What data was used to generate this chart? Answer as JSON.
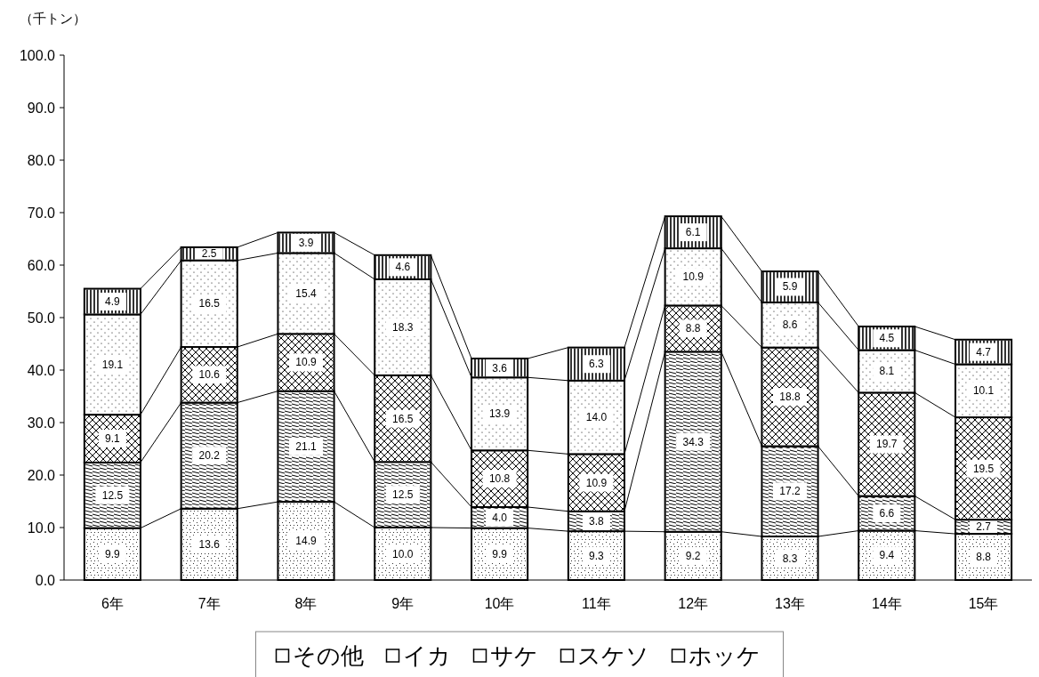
{
  "chart_data": {
    "type": "bar",
    "stacked": true,
    "ylabel": "（千トン）",
    "categories": [
      "6年",
      "7年",
      "8年",
      "9年",
      "10年",
      "11年",
      "12年",
      "13年",
      "14年",
      "15年"
    ],
    "ylim": [
      0,
      100
    ],
    "yticks": [
      {
        "value": 0,
        "label": "0.0"
      },
      {
        "value": 10,
        "label": "10.0"
      },
      {
        "value": 20,
        "label": "20.0"
      },
      {
        "value": 30,
        "label": "30.0"
      },
      {
        "value": 40,
        "label": "40.0"
      },
      {
        "value": 50,
        "label": "50.0"
      },
      {
        "value": 60,
        "label": "60.0"
      },
      {
        "value": 70,
        "label": "70.0"
      },
      {
        "value": 80,
        "label": "80.0"
      },
      {
        "value": 90,
        "label": "90.0"
      },
      {
        "value": 100,
        "label": "100.0"
      }
    ],
    "series": [
      {
        "name": "その他",
        "color": "#ffffff",
        "values": [
          9.9,
          13.6,
          14.9,
          10.0,
          9.9,
          9.3,
          9.2,
          8.3,
          9.4,
          8.8
        ],
        "value_labels": [
          "9.9",
          "13.6",
          "14.9",
          "10.0",
          "9.9",
          "9.3",
          "9.2",
          "8.3",
          "9.4",
          "8.8"
        ]
      },
      {
        "name": "イカ",
        "color": "#ffffff",
        "values": [
          12.5,
          20.2,
          21.1,
          12.5,
          4.0,
          3.8,
          34.3,
          17.2,
          6.6,
          2.7
        ],
        "value_labels": [
          "12.5",
          "20.2",
          "21.1",
          "12.5",
          "4.0",
          "3.8",
          "34.3",
          "17.2",
          "6.6",
          "2.7"
        ]
      },
      {
        "name": "サケ",
        "color": "#ffffff",
        "values": [
          9.1,
          10.6,
          10.9,
          16.5,
          10.8,
          10.9,
          8.8,
          18.8,
          19.7,
          19.5
        ],
        "value_labels": [
          "9.1",
          "10.6",
          "10.9",
          "16.5",
          "10.8",
          "10.9",
          "8.8",
          "18.8",
          "19.7",
          "19.5"
        ]
      },
      {
        "name": "スケソ",
        "color": "#ffffff",
        "values": [
          19.1,
          16.5,
          15.4,
          18.3,
          13.9,
          14.0,
          10.9,
          8.6,
          8.1,
          10.1
        ],
        "value_labels": [
          "19.1",
          "16.5",
          "15.4",
          "18.3",
          "13.9",
          "14.0",
          "10.9",
          "8.6",
          "8.1",
          "10.1"
        ]
      },
      {
        "name": "ホッケ",
        "color": "#ffffff",
        "values": [
          4.9,
          2.5,
          3.9,
          4.6,
          3.6,
          6.3,
          6.1,
          5.9,
          4.5,
          4.7
        ],
        "value_labels": [
          "4.9",
          "2.5",
          "3.9",
          "4.6",
          "3.6",
          "6.3",
          "6.1",
          "5.9",
          "4.5",
          "4.7"
        ]
      }
    ],
    "legend": "bottom",
    "grid": false
  }
}
